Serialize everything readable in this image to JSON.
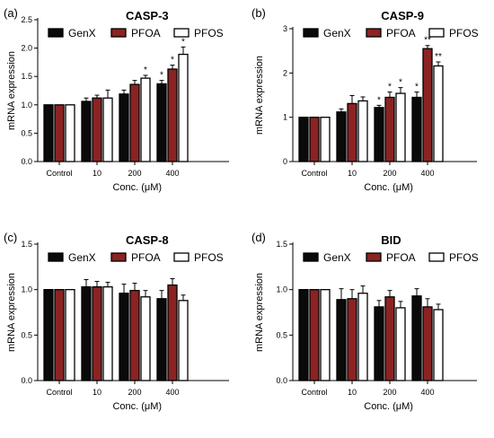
{
  "figure": {
    "charts": [
      {
        "panel": "(a)",
        "title": "CASP-3"
      },
      {
        "panel": "(b)",
        "title": "CASP-9"
      },
      {
        "panel": "(c)",
        "title": "CASP-8"
      },
      {
        "panel": "(d)",
        "title": "BID"
      }
    ]
  },
  "colors": {
    "GenX": "#0a0a0a",
    "PFOA": "#8b2323",
    "PFOS": "#ffffff",
    "stroke": "#000000"
  },
  "chart_data": [
    {
      "type": "bar",
      "panel": "(a)",
      "title": "CASP-3",
      "xlabel": "Conc. (μM)",
      "ylabel": "mRNA expression",
      "categories": [
        "Control",
        "10",
        "200",
        "400"
      ],
      "ylim": [
        0,
        2.5
      ],
      "yticks": [
        0.0,
        0.5,
        1.0,
        1.5,
        2.0,
        2.5
      ],
      "ytick_labels": [
        "0.0",
        "0.5",
        "1.0",
        "1.5",
        "2.0",
        "2.5"
      ],
      "legend_position": "top",
      "series": [
        {
          "name": "GenX",
          "values": [
            1.0,
            1.06,
            1.19,
            1.37
          ],
          "errors": [
            0,
            0.06,
            0.07,
            0.06
          ],
          "marks": [
            "",
            "",
            "",
            "*"
          ]
        },
        {
          "name": "PFOA",
          "values": [
            1.0,
            1.12,
            1.36,
            1.63
          ],
          "errors": [
            0,
            0.05,
            0.07,
            0.07
          ],
          "marks": [
            "",
            "",
            "",
            "*"
          ]
        },
        {
          "name": "PFOS",
          "values": [
            1.0,
            1.12,
            1.47,
            1.89
          ],
          "errors": [
            0,
            0.14,
            0.05,
            0.13
          ],
          "marks": [
            "",
            "",
            "*",
            "*"
          ]
        }
      ]
    },
    {
      "type": "bar",
      "panel": "(b)",
      "title": "CASP-9",
      "xlabel": "Conc. (μM)",
      "ylabel": "mRNA expression",
      "categories": [
        "Control",
        "10",
        "200",
        "400"
      ],
      "ylim": [
        0,
        3
      ],
      "yticks": [
        0,
        1,
        2,
        3
      ],
      "ytick_labels": [
        "0",
        "1",
        "2",
        "3"
      ],
      "legend_position": "top",
      "series": [
        {
          "name": "GenX",
          "values": [
            1.0,
            1.12,
            1.22,
            1.45
          ],
          "errors": [
            0,
            0.07,
            0.05,
            0.12
          ],
          "marks": [
            "",
            "",
            "*",
            "*"
          ]
        },
        {
          "name": "PFOA",
          "values": [
            1.0,
            1.31,
            1.45,
            2.55
          ],
          "errors": [
            0,
            0.18,
            0.12,
            0.07
          ],
          "marks": [
            "",
            "",
            "*",
            "**"
          ]
        },
        {
          "name": "PFOS",
          "values": [
            1.0,
            1.37,
            1.54,
            2.16
          ],
          "errors": [
            0,
            0.09,
            0.13,
            0.09
          ],
          "marks": [
            "",
            "",
            "*",
            "**"
          ]
        }
      ]
    },
    {
      "type": "bar",
      "panel": "(c)",
      "title": "CASP-8",
      "xlabel": "Conc. (μM)",
      "ylabel": "mRNA expression",
      "categories": [
        "Control",
        "10",
        "200",
        "400"
      ],
      "ylim": [
        0,
        1.5
      ],
      "yticks": [
        0.0,
        0.5,
        1.0,
        1.5
      ],
      "ytick_labels": [
        "0.0",
        "0.5",
        "1.0",
        "1.5"
      ],
      "legend_position": "top",
      "series": [
        {
          "name": "GenX",
          "values": [
            1.0,
            1.03,
            0.96,
            0.9
          ],
          "errors": [
            0,
            0.08,
            0.1,
            0.09
          ],
          "marks": [
            "",
            "",
            "",
            ""
          ]
        },
        {
          "name": "PFOA",
          "values": [
            1.0,
            1.03,
            0.99,
            1.05
          ],
          "errors": [
            0,
            0.06,
            0.08,
            0.07
          ],
          "marks": [
            "",
            "",
            "",
            ""
          ]
        },
        {
          "name": "PFOS",
          "values": [
            1.0,
            1.03,
            0.92,
            0.88
          ],
          "errors": [
            0,
            0.05,
            0.07,
            0.06
          ],
          "marks": [
            "",
            "",
            "",
            ""
          ]
        }
      ]
    },
    {
      "type": "bar",
      "panel": "(d)",
      "title": "BID",
      "xlabel": "Conc. (μM)",
      "ylabel": "mRNA expression",
      "categories": [
        "Control",
        "10",
        "200",
        "400"
      ],
      "ylim": [
        0,
        1.5
      ],
      "yticks": [
        0.0,
        0.5,
        1.0,
        1.5
      ],
      "ytick_labels": [
        "0.0",
        "0.5",
        "1.0",
        "1.5"
      ],
      "legend_position": "top",
      "series": [
        {
          "name": "GenX",
          "values": [
            1.0,
            0.89,
            0.81,
            0.93
          ],
          "errors": [
            0,
            0.12,
            0.07,
            0.08
          ],
          "marks": [
            "",
            "",
            "",
            ""
          ]
        },
        {
          "name": "PFOA",
          "values": [
            1.0,
            0.9,
            0.92,
            0.81
          ],
          "errors": [
            0,
            0.1,
            0.07,
            0.09
          ],
          "marks": [
            "",
            "",
            "",
            ""
          ]
        },
        {
          "name": "PFOS",
          "values": [
            1.0,
            0.96,
            0.8,
            0.78
          ],
          "errors": [
            0,
            0.08,
            0.07,
            0.06
          ],
          "marks": [
            "",
            "",
            "",
            ""
          ]
        }
      ]
    }
  ]
}
